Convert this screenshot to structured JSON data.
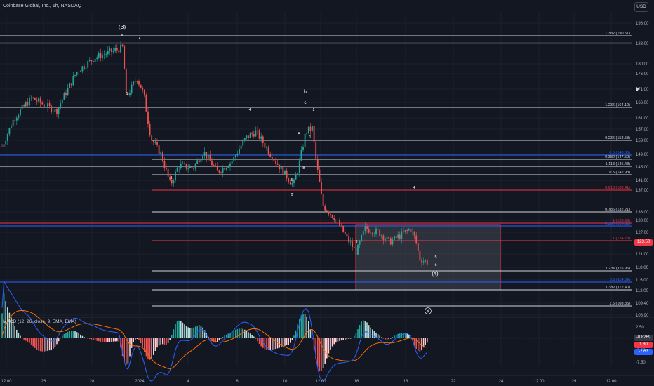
{
  "header": {
    "symbol_title": "Coinbase Global, Inc., 1h, NASDAQ",
    "currency": "USD"
  },
  "colors": {
    "background": "#131722",
    "up": "#26a69a",
    "down": "#ef5350",
    "fib_white": "#d1d4dc",
    "fib_red": "#f23645",
    "fib_blue": "#2962ff",
    "zone_fill": "#5d606b",
    "macd_line": "#2962ff",
    "signal_line": "#ff6d00"
  },
  "price_axis": {
    "ticks": [
      "196.00",
      "188.00",
      "180.00",
      "176.00",
      "171.00",
      "166.00",
      "161.00",
      "157.00",
      "153.00",
      "149.00",
      "145.00",
      "141.00",
      "137.00",
      "133.00",
      "130.00",
      "127.00",
      "121.00",
      "118.00",
      "115.00",
      "112.00",
      "109.40",
      "106.90"
    ],
    "current_price": "123.50"
  },
  "macd": {
    "title": "MACD (12, 26, close, 9, EMA, EMA)",
    "ticks": [
      "2.50",
      "0.0000",
      "-5.00",
      "-7.50"
    ],
    "value_labels": [
      "-0.8269",
      "1.80",
      "-2.63"
    ]
  },
  "time_axis": {
    "labels": [
      "12:00",
      "26",
      "28",
      "2024",
      "4",
      "8",
      "10",
      "12:00",
      "16",
      "18",
      "22",
      "24",
      "12:00",
      "29",
      "12:00"
    ]
  },
  "fib_levels": [
    {
      "label": "1.382 (190.51)",
      "price": 190.51,
      "color": "white"
    },
    {
      "label": "1.236 (164.12)",
      "price": 164.12,
      "color": "white"
    },
    {
      "label": "0.236 (153.58)",
      "price": 153.58,
      "color": "white"
    },
    {
      "label": "0.5 (148.66)",
      "price": 148.66,
      "color": "blue"
    },
    {
      "label": "0.382 (147.59)",
      "price": 147.59,
      "color": "white"
    },
    {
      "label": "1.118 (145.48)",
      "price": 145.48,
      "color": "white"
    },
    {
      "label": "0.5 (142.93)",
      "price": 142.93,
      "color": "white"
    },
    {
      "label": "0.618 (138.41)",
      "price": 138.41,
      "color": "red"
    },
    {
      "label": "0.786 (132.21)",
      "price": 132.21,
      "color": "white"
    },
    {
      "label": "1 (128.96)",
      "price": 128.96,
      "color": "red"
    },
    {
      "label": "0.382 (128.01)",
      "price": 128.01,
      "color": "blue"
    },
    {
      "label": "1 (124.73)",
      "price": 124.73,
      "color": "red"
    },
    {
      "label": "1.236 (116.96)",
      "price": 116.96,
      "color": "white"
    },
    {
      "label": "0.5 (114.39)",
      "price": 114.39,
      "color": "blue"
    },
    {
      "label": "1.382 (112.40)",
      "price": 112.4,
      "color": "white"
    },
    {
      "label": "1.5 (108.85)",
      "price": 108.85,
      "color": "white"
    }
  ],
  "wave_labels": [
    "(3)",
    "v",
    "2",
    "1",
    "3",
    "4",
    "b",
    "c",
    "2",
    "A",
    "1",
    "B",
    "5",
    "a",
    "3",
    "4",
    "5",
    "c",
    "(4)"
  ]
}
